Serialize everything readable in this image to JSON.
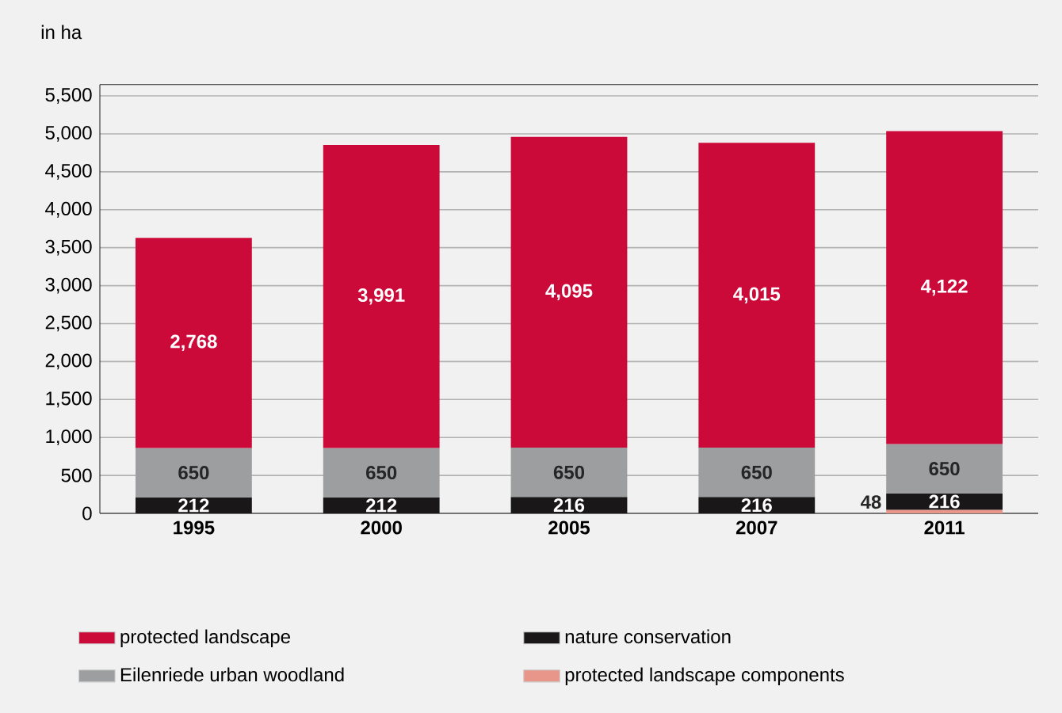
{
  "chart_data": {
    "type": "bar",
    "ylabel": "in ha",
    "stacked": true,
    "grid": "y",
    "legend": "bottom",
    "categories": [
      "1995",
      "2000",
      "2005",
      "2007",
      "2011"
    ],
    "series": [
      {
        "name": "protected landscape components",
        "color": "#e8958a",
        "values": [
          null,
          null,
          null,
          null,
          48
        ],
        "value_labels": [
          null,
          null,
          null,
          null,
          "48"
        ]
      },
      {
        "name": "nature conservation",
        "color": "#1a1718",
        "values": [
          212,
          212,
          216,
          216,
          216
        ],
        "value_labels": [
          "212",
          "212",
          "216",
          "216",
          "216"
        ]
      },
      {
        "name": "Eilenriede urban woodland",
        "color": "#9d9ea0",
        "values": [
          650,
          650,
          650,
          650,
          650
        ],
        "value_labels": [
          "650",
          "650",
          "650",
          "650",
          "650"
        ]
      },
      {
        "name": "protected landscape",
        "color": "#cc0a3a",
        "values": [
          2768,
          3991,
          4095,
          4015,
          4122
        ],
        "value_labels": [
          "2,768",
          "3,991",
          "4,095",
          "4,015",
          "4,122"
        ]
      }
    ],
    "ylim": [
      0,
      5650
    ],
    "yticks": [
      0,
      500,
      {
        "value": 1000,
        "label": "1,000"
      },
      {
        "value": 1500,
        "label": "1,500"
      },
      {
        "value": 2000,
        "label": "2,000"
      },
      {
        "value": 2500,
        "label": "2,500"
      },
      {
        "value": 3000,
        "label": "3,000"
      },
      {
        "value": 3500,
        "label": "3,500"
      },
      {
        "value": 4000,
        "label": "4,000"
      },
      {
        "value": 4500,
        "label": "4,500"
      },
      {
        "value": 5000,
        "label": "5,000"
      },
      {
        "value": 5500,
        "label": "5,500"
      }
    ]
  }
}
